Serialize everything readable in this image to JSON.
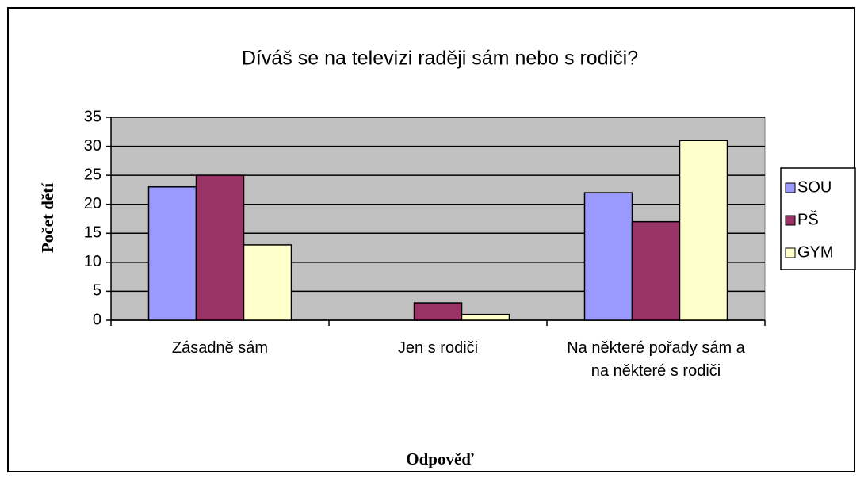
{
  "chart_data": {
    "type": "bar",
    "title": "Díváš se na televizi raději sám nebo s rodiči?",
    "x_label": "Odpověď",
    "y_label": "Počet dětí",
    "categories": [
      "Zásadně sám",
      "Jen s rodiči",
      "Na některé pořady sám a na některé s rodiči"
    ],
    "series": [
      {
        "name": "SOU",
        "color": "#9999ff",
        "values": [
          23,
          0,
          22
        ]
      },
      {
        "name": "PŠ",
        "color": "#993366",
        "values": [
          25,
          3,
          17
        ]
      },
      {
        "name": "GYM",
        "color": "#ffffcc",
        "values": [
          13,
          1,
          31
        ]
      }
    ],
    "ylim": [
      0,
      35
    ],
    "yticks": [
      0,
      5,
      10,
      15,
      20,
      25,
      30,
      35
    ],
    "grid": true,
    "legend": "right"
  }
}
